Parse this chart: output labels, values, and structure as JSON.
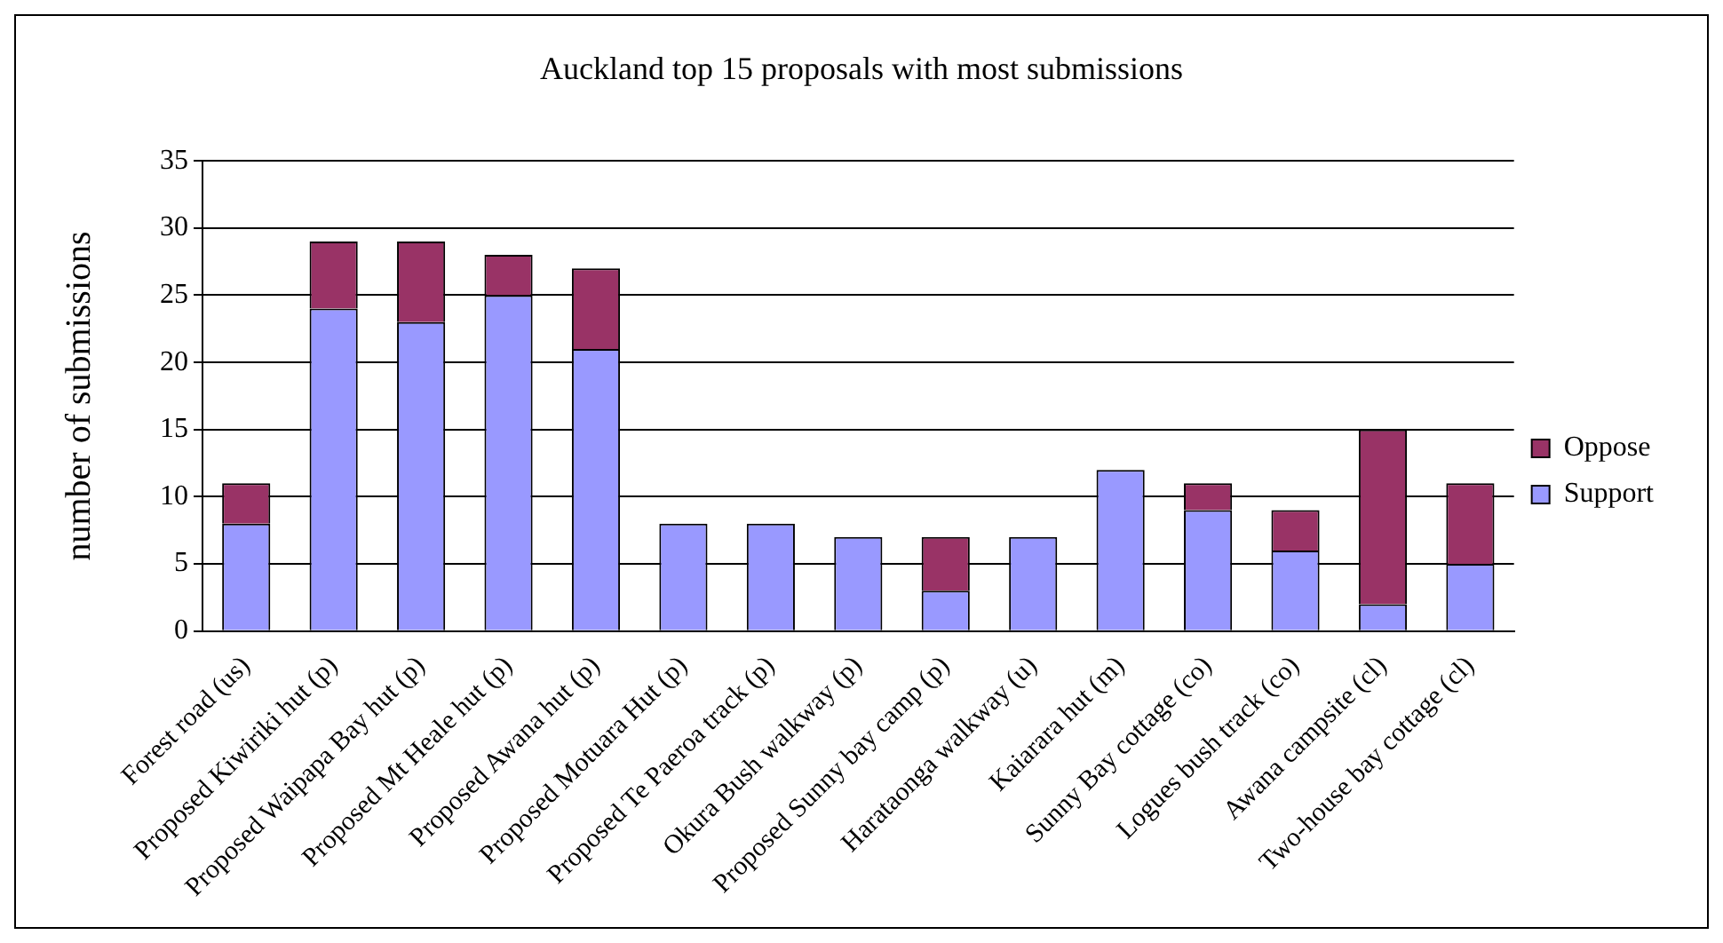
{
  "chart_data": {
    "type": "bar",
    "title": "Auckland top 15 proposals with most submissions",
    "ylabel": "number of submissions",
    "categories": [
      "Forest road (us)",
      "Proposed Kiwiriki hut (p)",
      "Proposed Waipapa Bay hut (p)",
      "Proposed Mt Heale hut (p)",
      "Proposed Awana hut (p)",
      "Proposed Motuara Hut (p)",
      "Proposed Te Paeroa track (p)",
      "Okura Bush walkway (p)",
      "Proposed Sunny bay camp (p)",
      "Harataonga walkway (u)",
      "Kaiarara hut (m)",
      "Sunny Bay cottage (co)",
      "Logues bush track (co)",
      "Awana campsite (cl)",
      "Two-house bay cottage (cl)"
    ],
    "series": [
      {
        "name": "Support",
        "color": "#9999ff",
        "values": [
          8,
          24,
          23,
          25,
          21,
          8,
          8,
          7,
          3,
          7,
          12,
          9,
          6,
          2,
          5
        ]
      },
      {
        "name": "Oppose",
        "color": "#993366",
        "values": [
          3,
          5,
          6,
          3,
          6,
          0,
          0,
          0,
          4,
          0,
          0,
          2,
          3,
          13,
          6
        ]
      }
    ],
    "stacked": true,
    "ylim": [
      0,
      35
    ],
    "yticks": [
      0,
      5,
      10,
      15,
      20,
      25,
      30,
      35
    ],
    "grid": "y",
    "legend": "right"
  }
}
